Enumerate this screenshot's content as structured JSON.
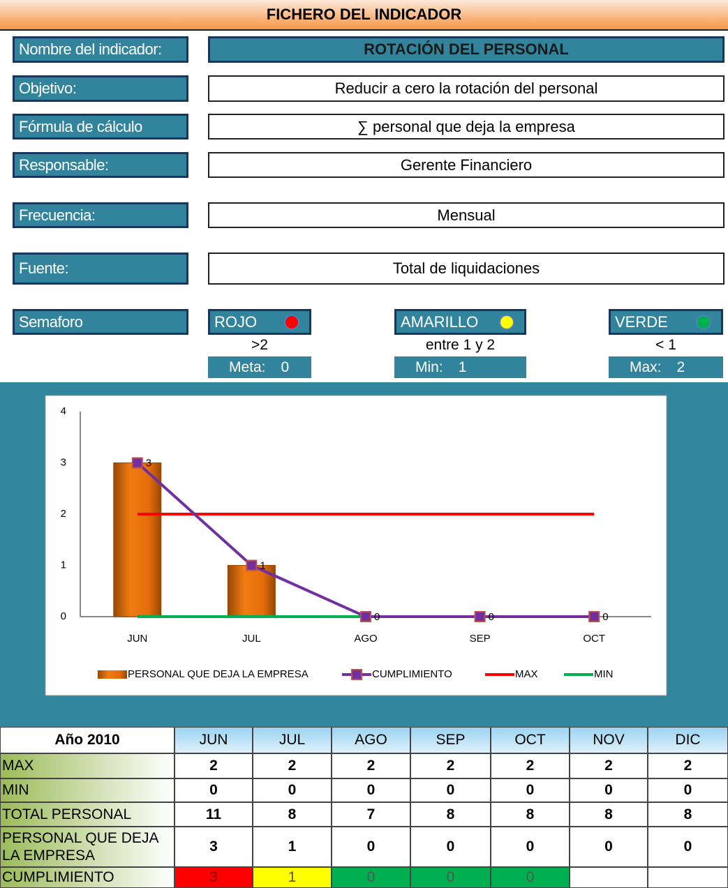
{
  "header": {
    "title": "FICHERO DEL INDICADOR"
  },
  "fields": [
    {
      "label": "Nombre del indicador:",
      "value": "ROTACIÓN DEL PERSONAL"
    },
    {
      "label": "Objetivo:",
      "value": "Reducir a cero la rotación del personal"
    },
    {
      "label": "Fórmula de cálculo",
      "value": "∑ personal que deja la empresa"
    },
    {
      "label": "Responsable:",
      "value": "Gerente Financiero"
    },
    {
      "label": "Frecuencia:",
      "value": "Mensual"
    },
    {
      "label": "Fuente:",
      "value": "Total de liquidaciones"
    }
  ],
  "semaforo": {
    "label": "Semaforo",
    "lights": [
      {
        "name": "ROJO",
        "color": "#ff0000",
        "condition": ">2",
        "limit_label": "Meta:",
        "limit": 0
      },
      {
        "name": "AMARILLO",
        "color": "#ffff00",
        "condition": "entre 1 y 2",
        "limit_label": "Min:",
        "limit": 1
      },
      {
        "name": "VERDE",
        "color": "#00b050",
        "condition": "< 1",
        "limit_label": "Max:",
        "limit": 2
      }
    ]
  },
  "chart_data": {
    "type": "combo",
    "categories": [
      "JUN",
      "JUL",
      "AGO",
      "SEP",
      "OCT"
    ],
    "ylim": [
      0,
      4
    ],
    "yticks": [
      0,
      1,
      2,
      3,
      4
    ],
    "series": [
      {
        "name": "PERSONAL QUE DEJA LA EMPRESA",
        "type": "bar",
        "color": "#e46c0a",
        "values": [
          3,
          1,
          0,
          0,
          0
        ]
      },
      {
        "name": "CUMPLIMIENTO",
        "type": "line",
        "markers": true,
        "data_labels": true,
        "color": "#7030a0",
        "values": [
          3,
          1,
          0,
          0,
          0
        ]
      },
      {
        "name": "MAX",
        "type": "line",
        "color": "#ff0000",
        "values": [
          2,
          2,
          2,
          2,
          2
        ]
      },
      {
        "name": "MIN",
        "type": "line",
        "color": "#00b050",
        "values": [
          0,
          0,
          0,
          0,
          0
        ]
      }
    ]
  },
  "table": {
    "corner": "Año 2010",
    "columns": [
      "JUN",
      "JUL",
      "AGO",
      "SEP",
      "OCT",
      "NOV",
      "DIC"
    ],
    "rows": [
      {
        "label": "MAX",
        "values": [
          2,
          2,
          2,
          2,
          2,
          2,
          2
        ]
      },
      {
        "label": "MIN",
        "values": [
          0,
          0,
          0,
          0,
          0,
          0,
          0
        ]
      },
      {
        "label": "TOTAL PERSONAL",
        "values": [
          11,
          8,
          7,
          8,
          8,
          8,
          8
        ]
      },
      {
        "label": "PERSONAL QUE DEJA LA EMPRESA",
        "values": [
          3,
          1,
          0,
          0,
          0,
          0,
          0
        ]
      },
      {
        "label": "CUMPLIMIENTO",
        "values": [
          3,
          1,
          0,
          0,
          0,
          null,
          null
        ],
        "colors": [
          "#ff0000",
          "#ffff00",
          "#00b050",
          "#00b050",
          "#00b050",
          null,
          null
        ]
      }
    ]
  }
}
